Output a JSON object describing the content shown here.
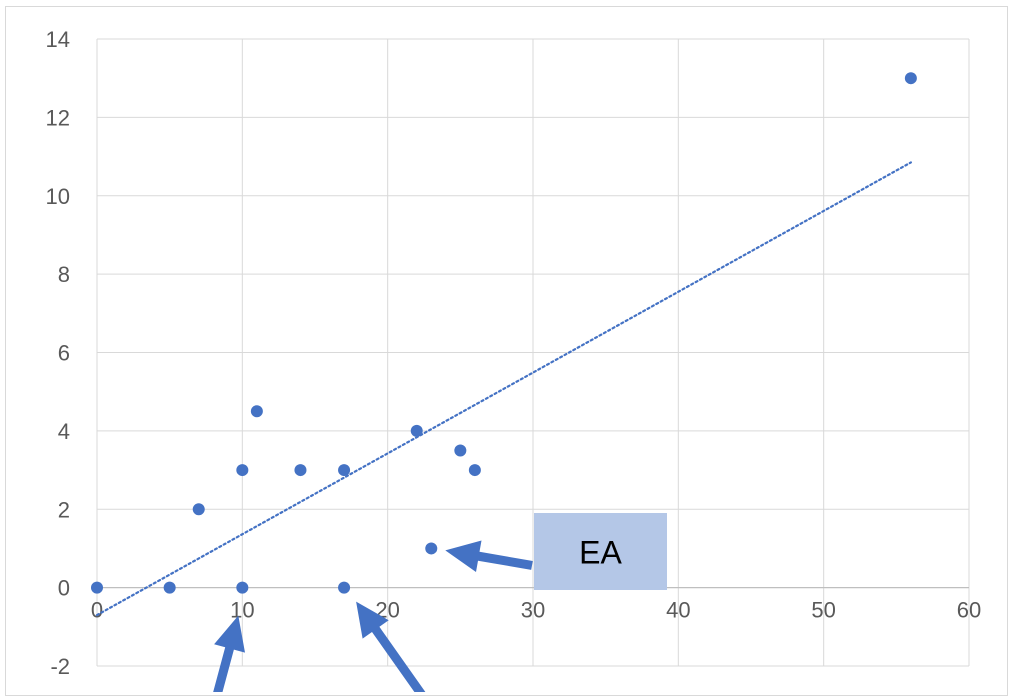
{
  "colors": {
    "marker": "#4472c4",
    "trendline": "#4472c4",
    "gridline": "#d9d9d9",
    "arrow": "#4472c4",
    "label_box": "#b4c7e7",
    "tick_text": "#595959"
  },
  "chart_data": {
    "type": "scatter",
    "title": "",
    "xlabel": "",
    "ylabel": "",
    "xlim": [
      0,
      60
    ],
    "ylim": [
      -2,
      14
    ],
    "xticks": [
      0,
      10,
      20,
      30,
      40,
      50,
      60
    ],
    "yticks": [
      -2,
      0,
      2,
      4,
      6,
      8,
      10,
      12,
      14
    ],
    "grid": true,
    "legend": "none",
    "series": [
      {
        "marker": "circle",
        "x": [
          0,
          5,
          7,
          10,
          10,
          11,
          14,
          17,
          17,
          22,
          23,
          25,
          26,
          56
        ],
        "y": [
          0,
          0,
          2,
          3,
          0,
          4.5,
          3,
          3,
          0,
          4,
          1,
          3.5,
          3,
          13
        ]
      }
    ],
    "trendline": {
      "type": "linear",
      "style": "dotted",
      "x": [
        0,
        56
      ],
      "y": [
        -0.7,
        10.85
      ]
    },
    "annotations": [
      {
        "text": "EA",
        "target": {
          "x": 23,
          "y": 1
        }
      },
      {
        "text": "",
        "target": {
          "x": 10,
          "y": 0
        }
      },
      {
        "text": "",
        "target": {
          "x": 17,
          "y": 0
        }
      }
    ]
  }
}
